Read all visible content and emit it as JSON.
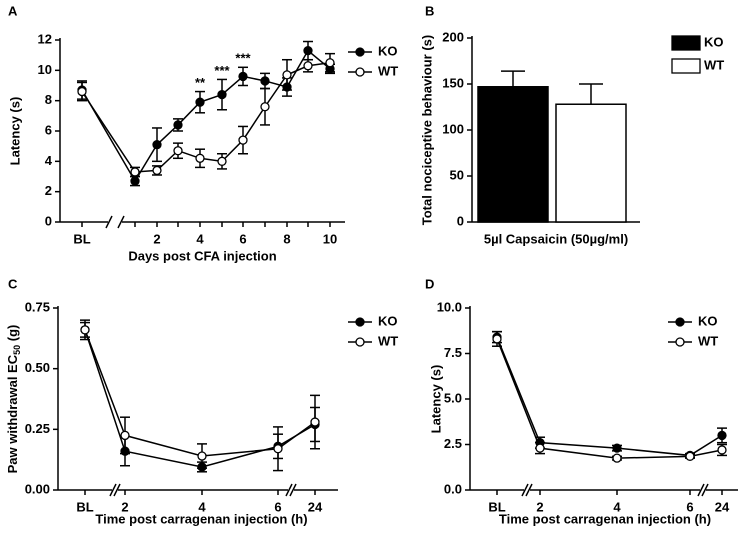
{
  "chart_data": [
    {
      "type": "line",
      "panel": "A",
      "ylabel": "Latency (s)",
      "xlabel": "Days post CFA injection",
      "categories": [
        "BL",
        null,
        "2",
        null,
        "4",
        null,
        "6",
        null,
        "8",
        null,
        "10"
      ],
      "ylim": [
        0,
        12
      ],
      "yticks": [
        0,
        2,
        4,
        6,
        8,
        10,
        12
      ],
      "series": [
        {
          "name": "KO",
          "color": "#000000",
          "values": [
            8.7,
            2.7,
            5.1,
            6.4,
            7.9,
            8.4,
            9.6,
            9.3,
            8.9,
            11.3,
            10.1
          ],
          "errors": [
            0.6,
            0.3,
            1.1,
            0.4,
            0.7,
            1.0,
            0.6,
            0.5,
            0.6,
            0.6,
            0.3
          ],
          "labels": [
            null,
            null,
            null,
            null,
            "**",
            "***",
            "***",
            null,
            null,
            null,
            null
          ]
        },
        {
          "name": "WT",
          "color": "#ffffff",
          "values": [
            8.6,
            3.3,
            3.4,
            4.7,
            4.2,
            4.0,
            5.4,
            7.6,
            9.7,
            10.3,
            10.5
          ],
          "errors": [
            0.6,
            0.3,
            0.3,
            0.5,
            0.6,
            0.5,
            0.9,
            1.2,
            1.0,
            0.4,
            0.6
          ]
        }
      ]
    },
    {
      "type": "bar",
      "panel": "B",
      "ylabel": "Total nociceptive behaviour (s)",
      "xlabel": "5µl Capsaicin (50µg/ml)",
      "ylim": [
        0,
        200
      ],
      "yticks": [
        0,
        50,
        100,
        150,
        200
      ],
      "series": [
        {
          "name": "KO",
          "color": "#000000",
          "values": [
            147
          ],
          "errors": [
            17
          ]
        },
        {
          "name": "WT",
          "color": "#ffffff",
          "values": [
            128
          ],
          "errors": [
            22
          ]
        }
      ]
    },
    {
      "type": "line",
      "panel": "C",
      "ylabel": {
        "text": "Paw withdrawal EC",
        "sub": "50",
        "unit": "(g)"
      },
      "xlabel": "Time post carragenan injection (h)",
      "categories": [
        "BL",
        "2",
        "4",
        "6",
        "24"
      ],
      "ylim": [
        0,
        0.75
      ],
      "yticks": [
        {
          "value": 0,
          "label": "0.00"
        },
        {
          "value": 0.25,
          "label": "0.25"
        },
        {
          "value": 0.5,
          "label": "0.50"
        },
        {
          "value": 0.75,
          "label": "0.75"
        }
      ],
      "series": [
        {
          "name": "KO",
          "color": "#000000",
          "values": [
            0.66,
            0.16,
            0.095,
            0.18,
            0.27
          ],
          "errors": [
            0.03,
            0.06,
            0.02,
            0.05,
            0.07
          ]
        },
        {
          "name": "WT",
          "color": "#ffffff",
          "values": [
            0.66,
            0.225,
            0.14,
            0.17,
            0.28
          ],
          "errors": [
            0.04,
            0.075,
            0.05,
            0.09,
            0.11
          ]
        }
      ]
    },
    {
      "type": "line",
      "panel": "D",
      "ylabel": "Latency (s)",
      "xlabel": "Time post carragenan injection (h)",
      "categories": [
        "BL",
        "2",
        "4",
        "6",
        "24"
      ],
      "ylim": [
        0,
        10
      ],
      "yticks": [
        {
          "value": 0,
          "label": "0.0"
        },
        {
          "value": 2.5,
          "label": "2.5"
        },
        {
          "value": 5,
          "label": "5.0"
        },
        {
          "value": 7.5,
          "label": "7.5"
        },
        {
          "value": 10,
          "label": "10.0"
        }
      ],
      "series": [
        {
          "name": "KO",
          "color": "#000000",
          "values": [
            8.4,
            2.6,
            2.3,
            1.9,
            3.0
          ],
          "errors": [
            0.3,
            0.3,
            0.15,
            0.1,
            0.4
          ]
        },
        {
          "name": "WT",
          "color": "#ffffff",
          "values": [
            8.3,
            2.3,
            1.75,
            1.85,
            2.2
          ],
          "errors": [
            0.4,
            0.3,
            0.1,
            0.1,
            0.3
          ]
        }
      ]
    }
  ]
}
